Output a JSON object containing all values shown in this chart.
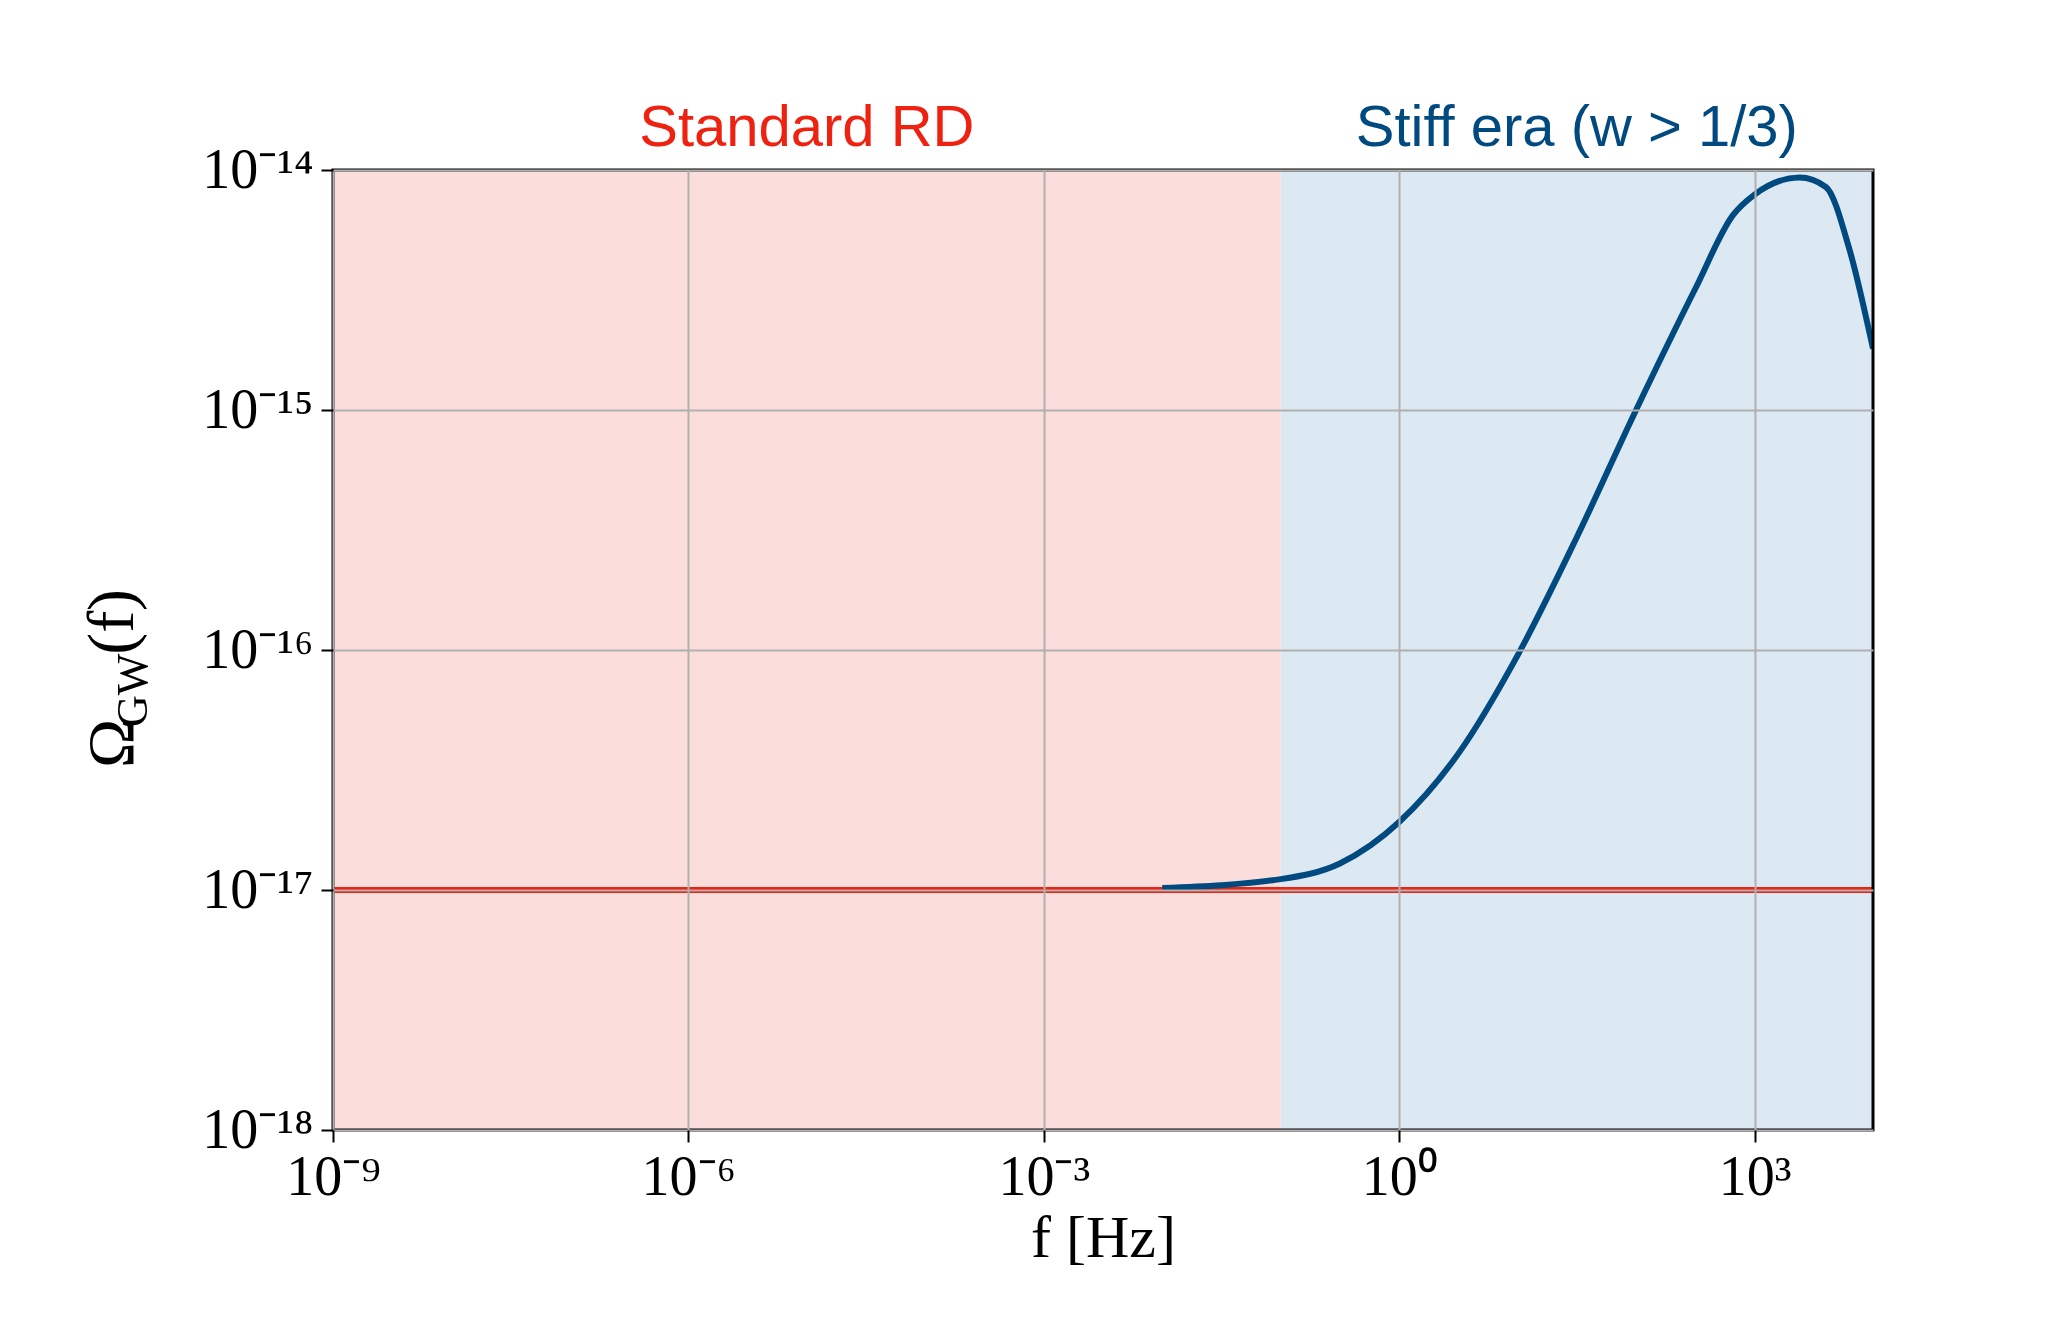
{
  "chart_data": {
    "type": "line",
    "xlabel": "f [Hz]",
    "ylabel": "Ω$_{GW}$(f)",
    "series": [
      {
        "color": "#ee2211",
        "x": [
          1e-09,
          10000.0
        ],
        "values": [
          1e-17,
          1e-17
        ]
      },
      {
        "color": "#004a80",
        "x": [
          0.01,
          0.1,
          0.316,
          1,
          3.16,
          10,
          31.6,
          100,
          316,
          660,
          1000,
          2400,
          4000,
          6300,
          10000
        ],
        "values": [
          1.02e-17,
          1.11e-17,
          1.29e-17,
          1.92e-17,
          3.7e-17,
          9.5e-17,
          2.95e-16,
          1e-15,
          3.2e-15,
          6.5e-15,
          7.9e-15,
          9.3e-15,
          8.5e-15,
          4.7e-15,
          1.8e-15
        ]
      }
    ],
    "bands": [
      {
        "axis": "x",
        "from": 1e-09,
        "to": 0.1,
        "label": "Standard RD",
        "color": "#fbdedb"
      },
      {
        "axis": "x",
        "from": 0.1,
        "to": 10000.0,
        "label": "Stiff era (w > 1/3)",
        "color": "#dde9f2"
      }
    ],
    "log": "xy",
    "grid": true,
    "xlim": [
      1e-09,
      10000.0
    ],
    "ylim": [
      1e-18,
      1e-14
    ],
    "xticks": [
      {
        "value": 1e-09,
        "label": "10⁻⁹"
      },
      {
        "value": 1e-06,
        "label": "10⁻⁶"
      },
      {
        "value": 0.001,
        "label": "10⁻³"
      },
      {
        "value": 1,
        "label": "10⁰"
      },
      {
        "value": 1000,
        "label": "10³"
      }
    ],
    "yticks": [
      {
        "value": 1e-18,
        "label": "10⁻¹⁸"
      },
      {
        "value": 1e-17,
        "label": "10⁻¹⁷"
      },
      {
        "value": 1e-16,
        "label": "10⁻¹⁶"
      },
      {
        "value": 1e-15,
        "label": "10⁻¹⁵"
      },
      {
        "value": 1e-14,
        "label": "10⁻¹⁴"
      }
    ]
  }
}
